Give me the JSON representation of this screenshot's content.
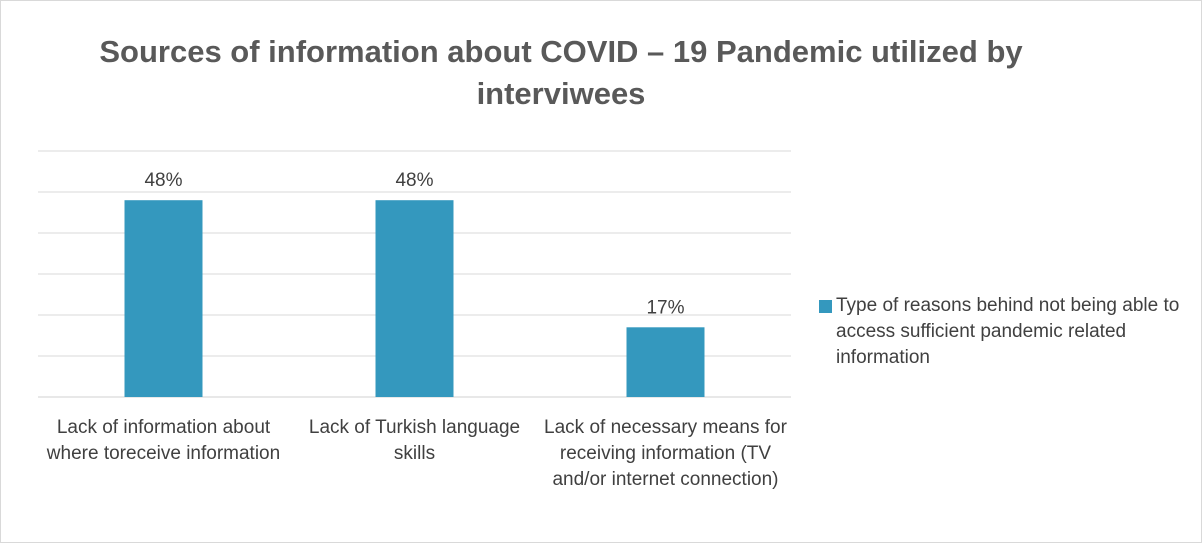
{
  "chart_data": {
    "type": "bar",
    "title": "Sources of information about COVID – 19 Pandemic utilized by interviwees",
    "categories": [
      "Lack of information about where toreceive information",
      "Lack of Turkish language skills",
      "Lack of necessary means for receiving information (TV and/or internet connection)"
    ],
    "series": [
      {
        "name": "Type of reasons behind not being able to access sufficient pandemic related information",
        "values": [
          0.48,
          0.48,
          0.17
        ],
        "data_labels": [
          "48%",
          "48%",
          "17%"
        ],
        "color": "#3498be"
      }
    ],
    "ylim": [
      0,
      0.6
    ],
    "gridlines": true,
    "legend_position": "right",
    "xlabel": "",
    "ylabel": ""
  }
}
